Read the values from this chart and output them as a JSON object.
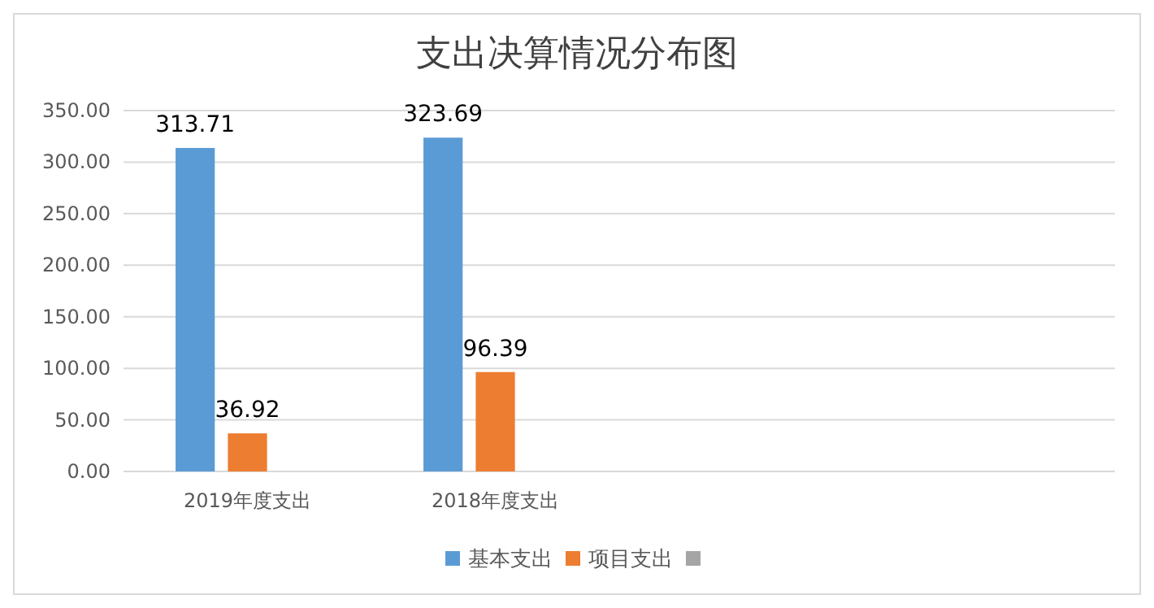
{
  "chart_data": {
    "type": "bar",
    "title": "支出决算情况分布图",
    "categories": [
      "2019年度支出",
      "2018年度支出",
      null,
      null
    ],
    "series": [
      {
        "name": "基本支出",
        "color": "#5b9bd5",
        "values": [
          313.71,
          323.69,
          null,
          null
        ]
      },
      {
        "name": "项目支出",
        "color": "#ed7d31",
        "values": [
          36.92,
          96.39,
          null,
          null
        ]
      },
      {
        "color": "#a5a5a5",
        "values": [
          null,
          null,
          null,
          null
        ]
      }
    ],
    "ylim": [
      0,
      350
    ],
    "yticks": [
      {
        "value": 0,
        "label": "0.00"
      },
      {
        "value": 50,
        "label": "50.00"
      },
      {
        "value": 100,
        "label": "100.00"
      },
      {
        "value": 150,
        "label": "150.00"
      },
      {
        "value": 200,
        "label": "200.00"
      },
      {
        "value": 250,
        "label": "250.00"
      },
      {
        "value": 300,
        "label": "300.00"
      },
      {
        "value": 350,
        "label": "350.00"
      }
    ],
    "grid": "y",
    "legend": "bottom",
    "data_labels": true
  }
}
